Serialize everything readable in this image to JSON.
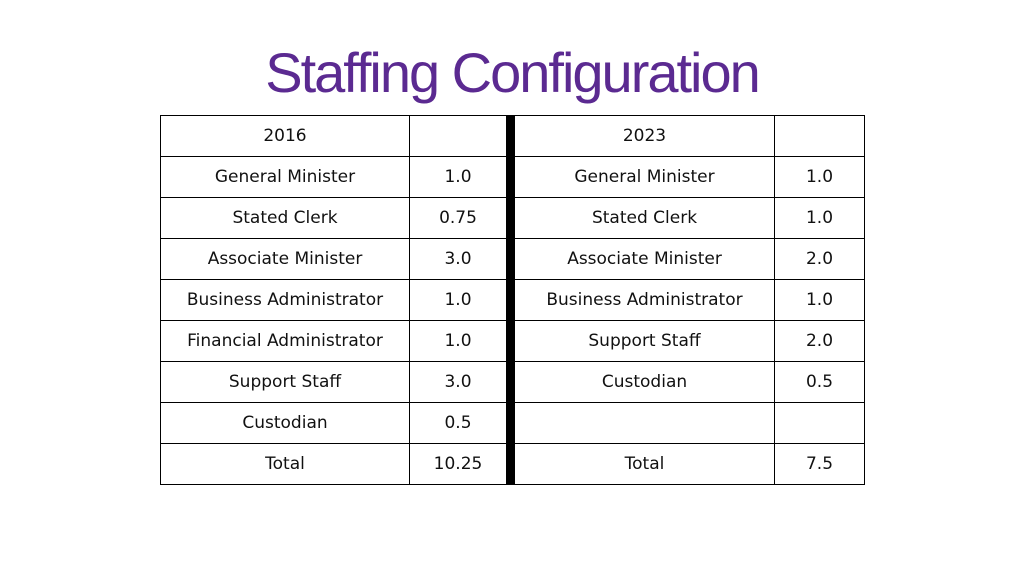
{
  "title": "Staffing Configuration",
  "table": {
    "header": {
      "year_2016": "2016",
      "year_2016_value": "",
      "year_2023": "2023",
      "year_2023_value": ""
    },
    "rows": [
      {
        "role_2016": "General Minister",
        "fte_2016": "1.0",
        "role_2023": "General Minister",
        "fte_2023": "1.0"
      },
      {
        "role_2016": "Stated Clerk",
        "fte_2016": "0.75",
        "role_2023": "Stated Clerk",
        "fte_2023": "1.0"
      },
      {
        "role_2016": "Associate Minister",
        "fte_2016": "3.0",
        "role_2023": "Associate Minister",
        "fte_2023": "2.0"
      },
      {
        "role_2016": "Business Administrator",
        "fte_2016": "1.0",
        "role_2023": "Business Administrator",
        "fte_2023": "1.0"
      },
      {
        "role_2016": "Financial Administrator",
        "fte_2016": "1.0",
        "role_2023": "Support Staff",
        "fte_2023": "2.0"
      },
      {
        "role_2016": "Support Staff",
        "fte_2016": "3.0",
        "role_2023": "Custodian",
        "fte_2023": "0.5"
      },
      {
        "role_2016": "Custodian",
        "fte_2016": "0.5",
        "role_2023": "",
        "fte_2023": ""
      },
      {
        "role_2016": "Total",
        "fte_2016": "10.25",
        "role_2023": "Total",
        "fte_2023": "7.5"
      }
    ]
  },
  "colors": {
    "title": "#5b2a91",
    "border": "#000000",
    "text": "#111111"
  }
}
